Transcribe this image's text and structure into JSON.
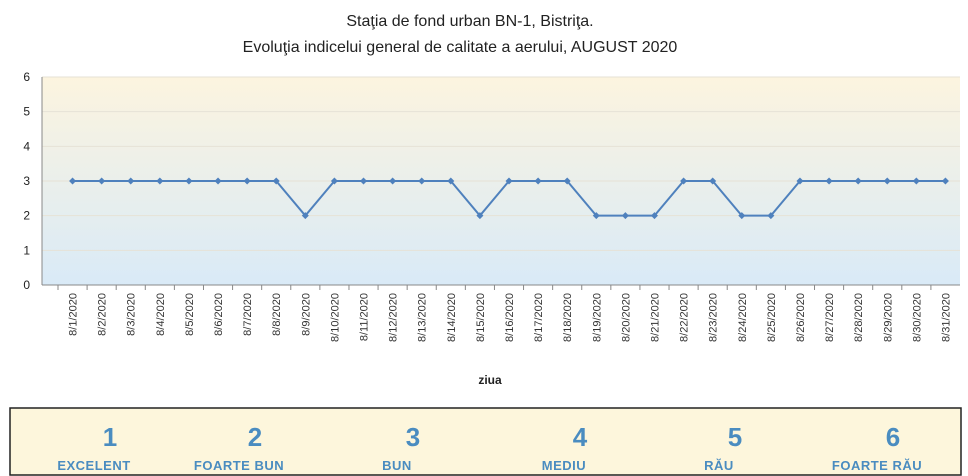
{
  "chart_data": {
    "type": "line",
    "title": "Staţia de fond urban BN-1, Bistriţa.",
    "subtitle": "Evoluţia indicelui general de calitate a aerului, AUGUST 2020",
    "x_label": "ziua",
    "categories": [
      "8/1/2020",
      "8/2/2020",
      "8/3/2020",
      "8/4/2020",
      "8/5/2020",
      "8/6/2020",
      "8/7/2020",
      "8/8/2020",
      "8/9/2020",
      "8/10/2020",
      "8/11/2020",
      "8/12/2020",
      "8/13/2020",
      "8/14/2020",
      "8/15/2020",
      "8/16/2020",
      "8/17/2020",
      "8/18/2020",
      "8/19/2020",
      "8/20/2020",
      "8/21/2020",
      "8/22/2020",
      "8/23/2020",
      "8/24/2020",
      "8/25/2020",
      "8/26/2020",
      "8/27/2020",
      "8/28/2020",
      "8/29/2020",
      "8/30/2020",
      "8/31/2020"
    ],
    "values": [
      3,
      3,
      3,
      3,
      3,
      3,
      3,
      3,
      2,
      3,
      3,
      3,
      3,
      3,
      2,
      3,
      3,
      3,
      2,
      2,
      2,
      3,
      3,
      2,
      2,
      3,
      3,
      3,
      3,
      3,
      3
    ],
    "color": "#4f81bd",
    "ylim": [
      0,
      6
    ],
    "yticks": [
      0,
      1,
      2,
      3,
      4,
      5,
      6
    ],
    "grid": true,
    "index_scale": [
      {
        "value": 1,
        "label": "EXCELENT"
      },
      {
        "value": 2,
        "label": "FOARTE BUN"
      },
      {
        "value": 3,
        "label": "BUN"
      },
      {
        "value": 4,
        "label": "MEDIU"
      },
      {
        "value": 5,
        "label": "RĂU"
      },
      {
        "value": 6,
        "label": "FOARTE RĂU"
      }
    ]
  }
}
